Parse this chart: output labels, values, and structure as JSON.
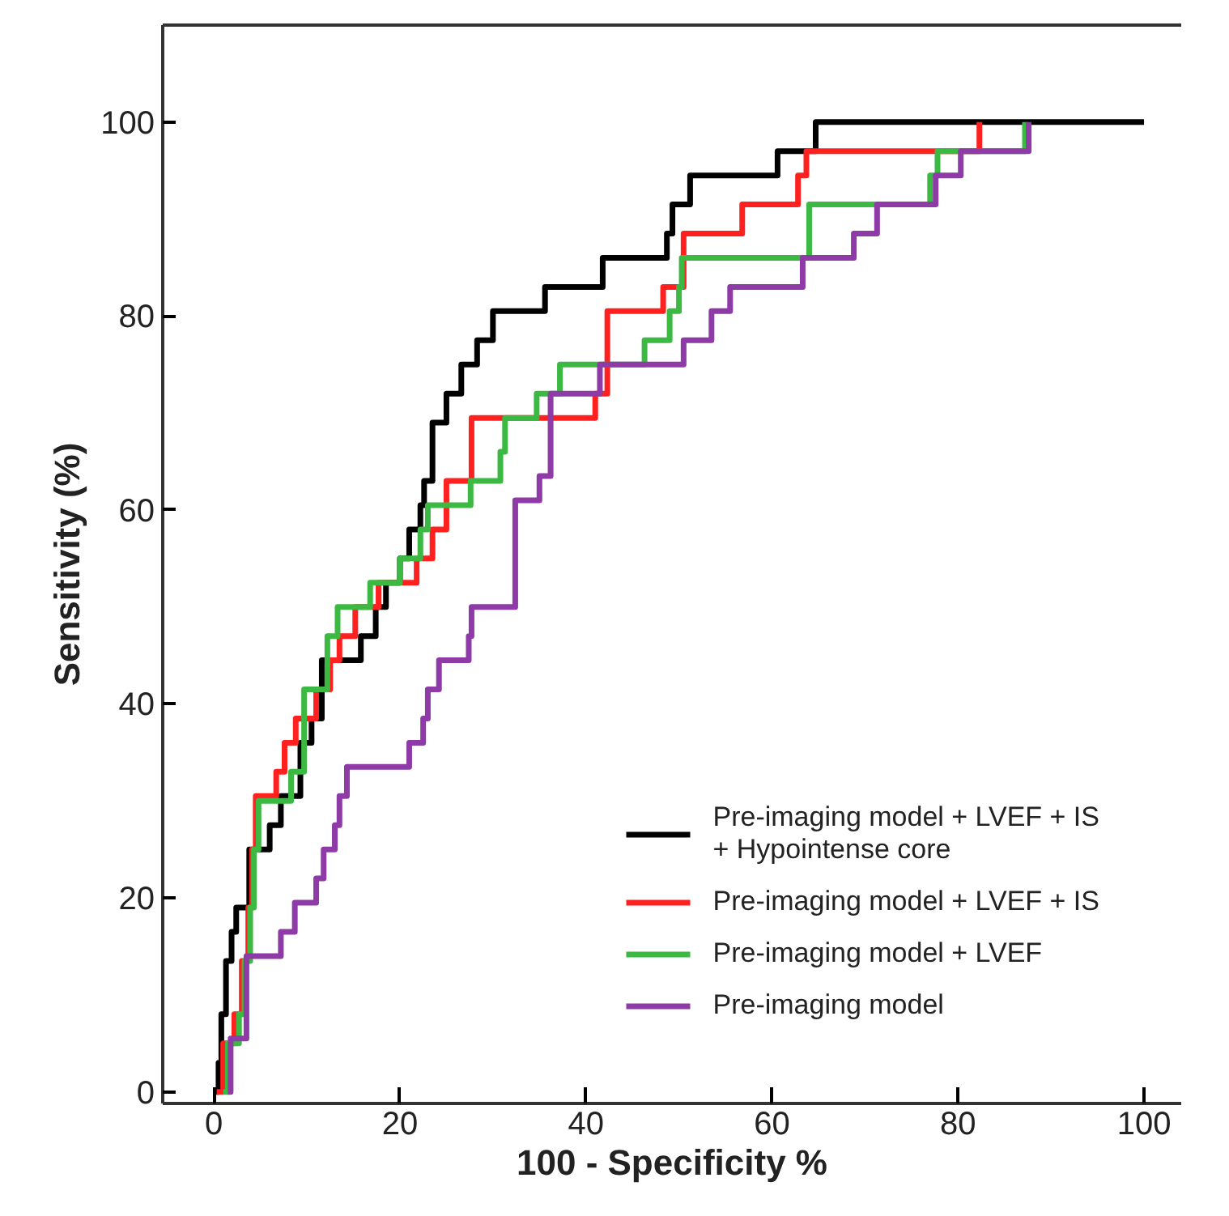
{
  "chart_data": {
    "type": "step",
    "xlabel": "100 - Specificity %",
    "ylabel": "Sensitivity (%)",
    "xlim": [
      -5.5,
      104
    ],
    "ylim": [
      -1.2,
      110
    ],
    "xticks": [
      0,
      20,
      40,
      60,
      80,
      100
    ],
    "yticks": [
      0,
      20,
      40,
      60,
      80,
      100
    ],
    "grid": false,
    "legend": "bottom right",
    "series": [
      {
        "name": "Pre-imaging model + LVEF + IS\n+ Hypointense core",
        "color": "#000000",
        "x": [
          0,
          0.5,
          0.8,
          1.3,
          1.9,
          2.4,
          3.8,
          6,
          7.2,
          9.3,
          10.5,
          11.6,
          15.8,
          17.4,
          18.5,
          20,
          21,
          22.2,
          22.6,
          23.5,
          25,
          26.6,
          28.3,
          30,
          35.6,
          41.8,
          48.7,
          49.3,
          51.2,
          60.6,
          64.7,
          100
        ],
        "values": [
          0,
          3,
          8,
          13.5,
          16.5,
          19,
          25,
          27.5,
          30.5,
          36,
          38.5,
          44.5,
          47,
          50,
          52.5,
          55,
          58,
          60.5,
          63,
          69,
          72,
          75,
          77.5,
          80.5,
          83,
          86,
          88.5,
          91.5,
          94.5,
          97,
          100,
          100
        ]
      },
      {
        "name": "Pre-imaging model + LVEF + IS",
        "color": "#ff2020",
        "x": [
          0.3,
          1,
          2.2,
          3,
          3.7,
          4.1,
          4.5,
          6.7,
          7.6,
          8.8,
          11,
          12.5,
          13.5,
          15.2,
          17.7,
          21.8,
          23.5,
          25,
          27.7,
          41,
          42.3,
          48.3,
          50.5,
          56.8,
          62.8,
          63.7,
          82.3
        ],
        "values": [
          0,
          5,
          8,
          13.5,
          19,
          25,
          30.5,
          33,
          36,
          38.5,
          41.5,
          44.5,
          47,
          50,
          52.5,
          55,
          58,
          63,
          69.5,
          72,
          80.5,
          83,
          88.5,
          91.5,
          94.5,
          97,
          100
        ]
      },
      {
        "name": "Pre-imaging model + LVEF",
        "color": "#3cb943",
        "x": [
          1,
          1.5,
          2.7,
          3.3,
          3.9,
          4.3,
          4.8,
          8.3,
          9.7,
          12.2,
          13.3,
          16.8,
          20,
          22.2,
          23,
          27.6,
          30.8,
          31.3,
          34.7,
          37.2,
          46.3,
          49,
          50,
          50.3,
          64,
          77,
          77.8,
          87.2
        ],
        "values": [
          0,
          5,
          8,
          13.5,
          19,
          25,
          30,
          33,
          41.5,
          47,
          50,
          52.5,
          55,
          58,
          60.5,
          63,
          66,
          69.5,
          72,
          75,
          77.5,
          80.5,
          83,
          86,
          91.5,
          94.5,
          97,
          100
        ]
      },
      {
        "name": "Pre-imaging model",
        "color": "#8e3aa7",
        "x": [
          1.5,
          1.8,
          3.5,
          7.2,
          8.7,
          11,
          11.8,
          13,
          13.5,
          14.3,
          21,
          22.5,
          23,
          24.2,
          27.4,
          27.7,
          32.4,
          35,
          36.2,
          41.5,
          50.5,
          53.5,
          55.5,
          63.3,
          68.8,
          71.3,
          77.6,
          80.3,
          87.6
        ],
        "values": [
          0,
          5.5,
          14,
          16.5,
          19.5,
          22,
          25,
          27.5,
          30.5,
          33.5,
          36,
          38.5,
          41.5,
          44.5,
          47,
          50,
          61,
          63.5,
          72,
          75,
          77.5,
          80.5,
          83,
          86,
          88.5,
          91.5,
          94.5,
          97,
          100
        ]
      }
    ]
  }
}
